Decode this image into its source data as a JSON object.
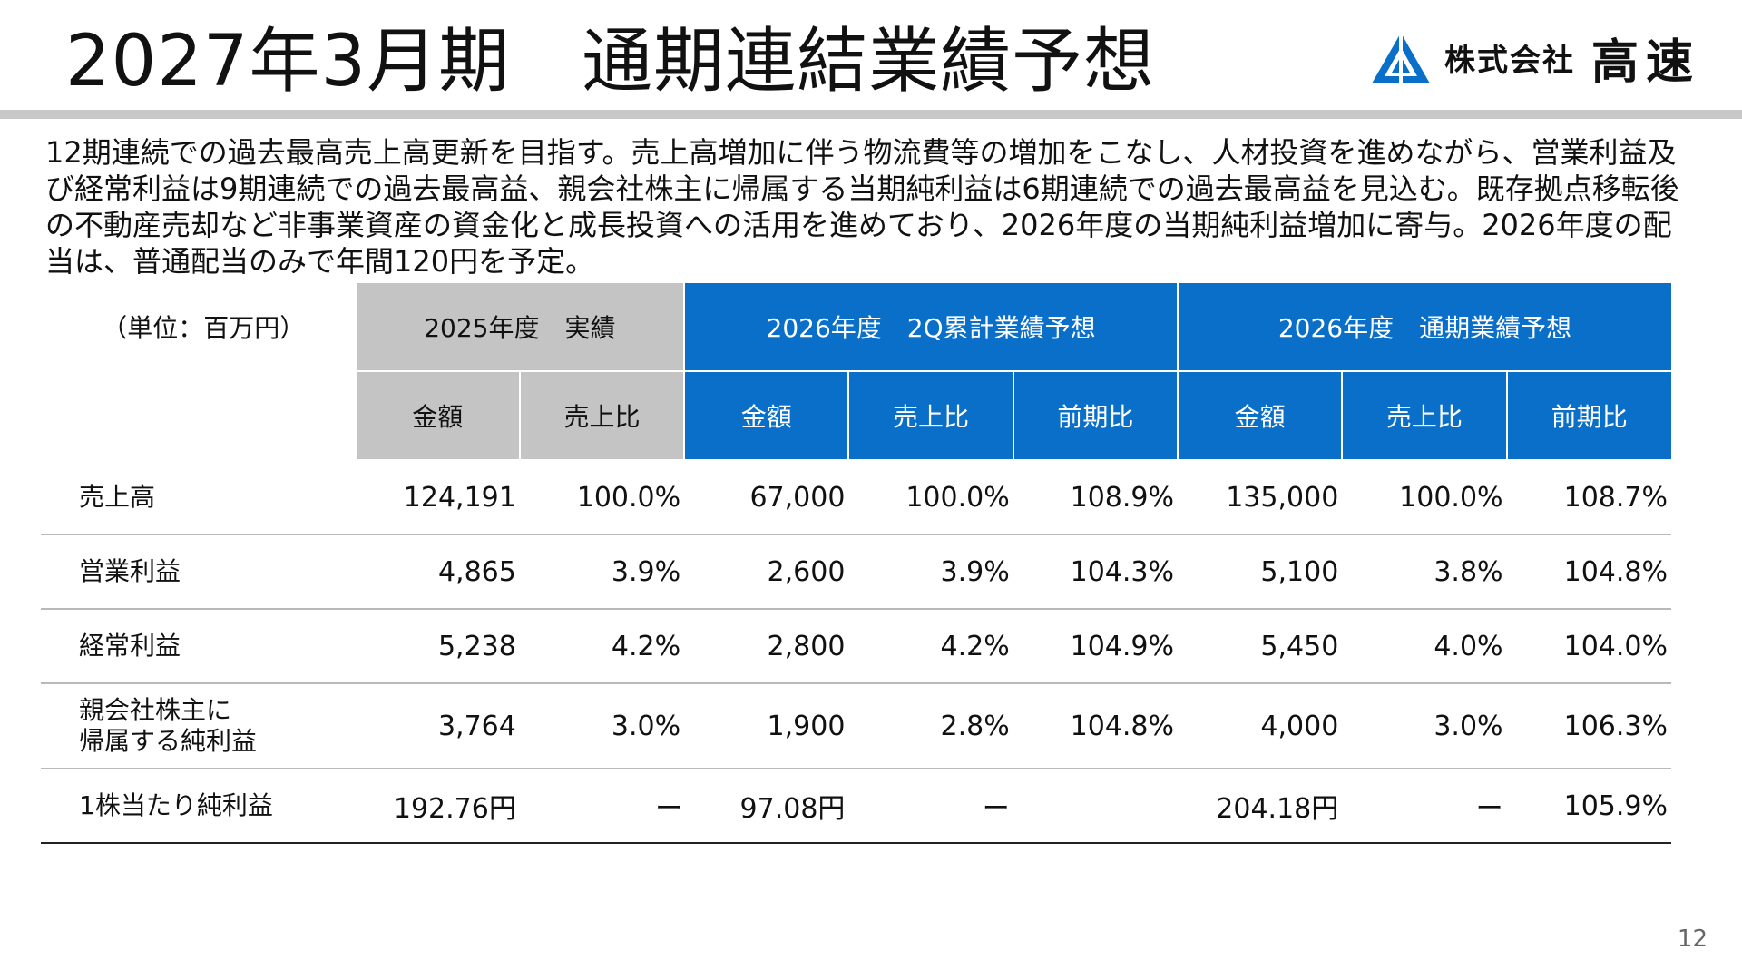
{
  "title": "2027年3月期　通期連結業績予想",
  "logo": {
    "small_text": "株式会社",
    "big_text": "高速",
    "icon": "triangle-logo-icon",
    "color": "#0a6fc9"
  },
  "description": "12期連続での過去最高売上高更新を目指す。売上高増加に伴う物流費等の増加をこなし、人材投資を進めながら、営業利益及び経常利益は9期連続での過去最高益、親会社株主に帰属する当期純利益は6期連続での過去最高益を見込む。既存拠点移転後の不動産売却など非事業資産の資金化と成長投資への活用を進めており、2026年度の当期純利益増加に寄与。2026年度の配当は、普通配当のみで年間120円を予定。",
  "table": {
    "unit": "（単位：百万円）",
    "groups": [
      "2025年度　実績",
      "2026年度　2Q累計業績予想",
      "2026年度　通期業績予想"
    ],
    "subheaders": {
      "amount": "金額",
      "sales_ratio": "売上比",
      "yoy": "前期比"
    },
    "rows": [
      {
        "label": "売上高",
        "values": [
          "124,191",
          "100.0%",
          "67,000",
          "100.0%",
          "108.9%",
          "135,000",
          "100.0%",
          "108.7%"
        ]
      },
      {
        "label": "営業利益",
        "values": [
          "4,865",
          "3.9%",
          "2,600",
          "3.9%",
          "104.3%",
          "5,100",
          "3.8%",
          "104.8%"
        ]
      },
      {
        "label": "経常利益",
        "values": [
          "5,238",
          "4.2%",
          "2,800",
          "4.2%",
          "104.9%",
          "5,450",
          "4.0%",
          "104.0%"
        ]
      },
      {
        "label": "親会社株主に\n帰属する純利益",
        "values": [
          "3,764",
          "3.0%",
          "1,900",
          "2.8%",
          "104.8%",
          "4,000",
          "3.0%",
          "106.3%"
        ]
      },
      {
        "label": "1株当たり純利益",
        "values": [
          "192.76円",
          "ー",
          "97.08円",
          "ー",
          "",
          "204.18円",
          "ー",
          "105.9%"
        ]
      }
    ],
    "colors": {
      "actual_header": "#c4c4c4",
      "forecast_header": "#0a6fc9"
    }
  },
  "page_number": "12"
}
